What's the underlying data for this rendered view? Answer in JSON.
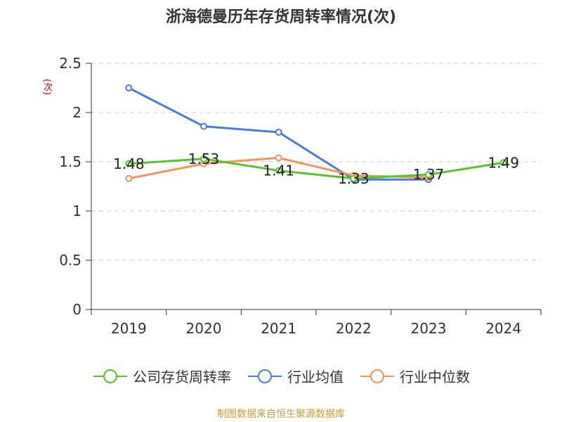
{
  "title": "浙海德曼历年存货周转率情况(次)",
  "unit_label": "(次)",
  "source": "制图数据来自恒生聚源数据库",
  "chart_data": {
    "type": "line",
    "categories": [
      "2019",
      "2020",
      "2021",
      "2022",
      "2023",
      "2024"
    ],
    "ylim": [
      0,
      2.5
    ],
    "yticks": [
      "0",
      "0.5",
      "1",
      "1.5",
      "2",
      "2.5"
    ],
    "grid": true,
    "legend_position": "bottom",
    "series": [
      {
        "name": "公司存货周转率",
        "color": "#5ac32b",
        "values": [
          1.48,
          1.53,
          1.41,
          1.33,
          1.37,
          1.49
        ],
        "labels": [
          "1.48",
          "1.53",
          "1.41",
          "1.33",
          "1.37",
          "1.49"
        ]
      },
      {
        "name": "行业均值",
        "color": "#4a7ddd",
        "values": [
          2.25,
          1.86,
          1.8,
          1.32,
          1.32,
          null
        ]
      },
      {
        "name": "行业中位数",
        "color": "#f4935a",
        "values": [
          1.33,
          1.48,
          1.54,
          1.36,
          1.34,
          null
        ]
      }
    ]
  }
}
